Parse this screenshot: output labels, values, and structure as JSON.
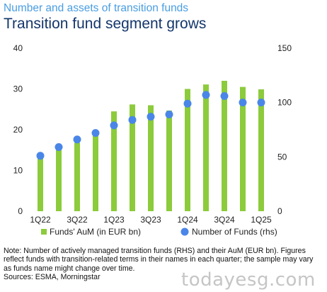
{
  "header": {
    "subtitle": "Number and assets of transition funds",
    "title": "Transition fund segment grows"
  },
  "chart_data": {
    "type": "bar",
    "categories": [
      "1Q22",
      "2Q22",
      "3Q22",
      "4Q22",
      "1Q23",
      "2Q23",
      "3Q23",
      "4Q23",
      "1Q24",
      "2Q24",
      "3Q24",
      "4Q24",
      "1Q25"
    ],
    "x_tick_labels": [
      "1Q22",
      "",
      "3Q22",
      "",
      "1Q23",
      "",
      "3Q23",
      "",
      "1Q24",
      "",
      "3Q24",
      "",
      "1Q25"
    ],
    "series": [
      {
        "name": "Funds' AuM (in EUR bn)",
        "type": "bar",
        "axis": "left",
        "color": "#8ccb3c",
        "values": [
          13.8,
          15.7,
          16.8,
          19.2,
          24.5,
          26.2,
          26.0,
          24.7,
          30.0,
          31.1,
          32.0,
          30.5,
          29.9
        ]
      },
      {
        "name": "Number of Funds (rhs)",
        "type": "scatter",
        "axis": "right",
        "color": "#4a86e8",
        "values": [
          51,
          59,
          66,
          72,
          79,
          84,
          87,
          89,
          99,
          107,
          106,
          100,
          100
        ]
      }
    ],
    "left_axis": {
      "min": 0,
      "max": 40,
      "ticks": [
        "0",
        "10",
        "20",
        "30",
        "40"
      ]
    },
    "right_axis": {
      "min": 0,
      "max": 150,
      "ticks": [
        "0",
        "50",
        "100",
        "150"
      ]
    },
    "legend_position": "bottom",
    "grid": false
  },
  "footer": {
    "note": "Note: Number of actively managed transition funds (RHS) and their AuM (EUR bn). Figures reflect funds with transition-related terms in their names in each quarter; the sample may vary as funds name might change over time.",
    "sources": "Sources: ESMA, Morningstar",
    "watermark": "todayesg.com"
  }
}
